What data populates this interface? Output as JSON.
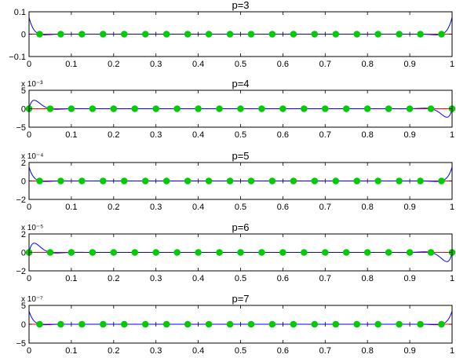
{
  "chart_data": [
    {
      "type": "line",
      "title": "p=3",
      "xlim": [
        0,
        1
      ],
      "ylim": [
        -0.1,
        0.1
      ],
      "yticks": [
        -0.1,
        0,
        0.1
      ],
      "ytick_labels": [
        "−0.1",
        "0",
        "0.1"
      ],
      "exponent_label": "",
      "xticks": [
        0,
        0.1,
        0.2,
        0.3,
        0.4,
        0.5,
        0.6,
        0.7,
        0.8,
        0.9,
        1
      ],
      "xtick_labels": [
        "0",
        "0.1",
        "0.2",
        "0.3",
        "0.4",
        "0.5",
        "0.6",
        "0.7",
        "0.8",
        "0.9",
        "1"
      ],
      "series": [
        {
          "kind": "error-curve",
          "color": "#0000ff",
          "peak_amplitude": 0.075,
          "zeros": [
            0.025,
            0.075,
            0.125,
            0.175,
            0.225,
            0.275,
            0.325,
            0.375,
            0.425,
            0.475,
            0.525,
            0.575,
            0.625,
            0.675,
            0.725,
            0.775,
            0.825,
            0.875,
            0.925,
            0.975
          ]
        },
        {
          "kind": "reference-line",
          "color": "#ff0000",
          "y": 0
        },
        {
          "kind": "nodes",
          "color": "#00cc00",
          "x": [
            0.025,
            0.075,
            0.125,
            0.175,
            0.225,
            0.275,
            0.325,
            0.375,
            0.425,
            0.475,
            0.525,
            0.575,
            0.625,
            0.675,
            0.725,
            0.775,
            0.825,
            0.875,
            0.925,
            0.975
          ],
          "y": 0
        }
      ]
    },
    {
      "type": "line",
      "title": "p=4",
      "xlim": [
        0,
        1
      ],
      "ylim": [
        -5,
        5
      ],
      "yticks": [
        -5,
        0,
        5
      ],
      "ytick_labels": [
        "−5",
        "0",
        "5"
      ],
      "exponent_label": "x 10⁻³",
      "xticks": [
        0,
        0.1,
        0.2,
        0.3,
        0.4,
        0.5,
        0.6,
        0.7,
        0.8,
        0.9,
        1
      ],
      "xtick_labels": [
        "0",
        "0.1",
        "0.2",
        "0.3",
        "0.4",
        "0.5",
        "0.6",
        "0.7",
        "0.8",
        "0.9",
        "1"
      ],
      "series": [
        {
          "kind": "error-curve",
          "color": "#0000ff",
          "peak_amplitude": 2.3,
          "zeros": [
            0,
            0.05,
            0.1,
            0.15,
            0.2,
            0.25,
            0.3,
            0.35,
            0.4,
            0.45,
            0.5,
            0.55,
            0.6,
            0.65,
            0.7,
            0.75,
            0.8,
            0.85,
            0.9,
            0.95,
            1
          ]
        },
        {
          "kind": "reference-line",
          "color": "#ff0000",
          "y": 0
        },
        {
          "kind": "nodes",
          "color": "#00cc00",
          "x": [
            0,
            0.05,
            0.1,
            0.15,
            0.2,
            0.25,
            0.3,
            0.35,
            0.4,
            0.45,
            0.5,
            0.55,
            0.6,
            0.65,
            0.7,
            0.75,
            0.8,
            0.85,
            0.9,
            0.95,
            1
          ],
          "y": 0
        }
      ]
    },
    {
      "type": "line",
      "title": "p=5",
      "xlim": [
        0,
        1
      ],
      "ylim": [
        -2,
        2
      ],
      "yticks": [
        -2,
        0,
        2
      ],
      "ytick_labels": [
        "−2",
        "0",
        "2"
      ],
      "exponent_label": "x 10⁻⁴",
      "xticks": [
        0,
        0.1,
        0.2,
        0.3,
        0.4,
        0.5,
        0.6,
        0.7,
        0.8,
        0.9,
        1
      ],
      "xtick_labels": [
        "0",
        "0.1",
        "0.2",
        "0.3",
        "0.4",
        "0.5",
        "0.6",
        "0.7",
        "0.8",
        "0.9",
        "1"
      ],
      "series": [
        {
          "kind": "error-curve",
          "color": "#0000ff",
          "peak_amplitude": 1.5,
          "zeros": [
            0.025,
            0.075,
            0.125,
            0.175,
            0.225,
            0.275,
            0.325,
            0.375,
            0.425,
            0.475,
            0.525,
            0.575,
            0.625,
            0.675,
            0.725,
            0.775,
            0.825,
            0.875,
            0.925,
            0.975
          ]
        },
        {
          "kind": "reference-line",
          "color": "#ff0000",
          "y": 0
        },
        {
          "kind": "nodes",
          "color": "#00cc00",
          "x": [
            0.025,
            0.075,
            0.125,
            0.175,
            0.225,
            0.275,
            0.325,
            0.375,
            0.425,
            0.475,
            0.525,
            0.575,
            0.625,
            0.675,
            0.725,
            0.775,
            0.825,
            0.875,
            0.925,
            0.975
          ],
          "y": 0
        }
      ]
    },
    {
      "type": "line",
      "title": "p=6",
      "xlim": [
        0,
        1
      ],
      "ylim": [
        -2,
        2
      ],
      "yticks": [
        -2,
        0,
        2
      ],
      "ytick_labels": [
        "−2",
        "0",
        "2"
      ],
      "exponent_label": "x 10⁻⁵",
      "xticks": [
        0,
        0.1,
        0.2,
        0.3,
        0.4,
        0.5,
        0.6,
        0.7,
        0.8,
        0.9,
        1
      ],
      "xtick_labels": [
        "0",
        "0.1",
        "0.2",
        "0.3",
        "0.4",
        "0.5",
        "0.6",
        "0.7",
        "0.8",
        "0.9",
        "1"
      ],
      "series": [
        {
          "kind": "error-curve",
          "color": "#0000ff",
          "peak_amplitude": 1.0,
          "zeros": [
            0,
            0.05,
            0.1,
            0.15,
            0.2,
            0.25,
            0.3,
            0.35,
            0.4,
            0.45,
            0.5,
            0.55,
            0.6,
            0.65,
            0.7,
            0.75,
            0.8,
            0.85,
            0.9,
            0.95,
            1
          ]
        },
        {
          "kind": "reference-line",
          "color": "#ff0000",
          "y": 0
        },
        {
          "kind": "nodes",
          "color": "#00cc00",
          "x": [
            0,
            0.05,
            0.1,
            0.15,
            0.2,
            0.25,
            0.3,
            0.35,
            0.4,
            0.45,
            0.5,
            0.55,
            0.6,
            0.65,
            0.7,
            0.75,
            0.8,
            0.85,
            0.9,
            0.95,
            1
          ],
          "y": 0
        }
      ]
    },
    {
      "type": "line",
      "title": "p=7",
      "xlim": [
        0,
        1
      ],
      "ylim": [
        -5,
        5
      ],
      "yticks": [
        -5,
        0,
        5
      ],
      "ytick_labels": [
        "−5",
        "0",
        "5"
      ],
      "exponent_label": "x 10⁻⁷",
      "xticks": [
        0,
        0.1,
        0.2,
        0.3,
        0.4,
        0.5,
        0.6,
        0.7,
        0.8,
        0.9,
        1
      ],
      "xtick_labels": [
        "0",
        "0.1",
        "0.2",
        "0.3",
        "0.4",
        "0.5",
        "0.6",
        "0.7",
        "0.8",
        "0.9",
        "1"
      ],
      "series": [
        {
          "kind": "error-curve",
          "color": "#0000ff",
          "peak_amplitude": 3.5,
          "zeros": [
            0.025,
            0.075,
            0.125,
            0.175,
            0.225,
            0.275,
            0.325,
            0.375,
            0.425,
            0.475,
            0.525,
            0.575,
            0.625,
            0.675,
            0.725,
            0.775,
            0.825,
            0.875,
            0.925,
            0.975
          ]
        },
        {
          "kind": "reference-line",
          "color": "#ff0000",
          "y": 0
        },
        {
          "kind": "nodes",
          "color": "#00cc00",
          "x": [
            0.025,
            0.075,
            0.125,
            0.175,
            0.225,
            0.275,
            0.325,
            0.375,
            0.425,
            0.475,
            0.525,
            0.575,
            0.625,
            0.675,
            0.725,
            0.775,
            0.825,
            0.875,
            0.925,
            0.975
          ],
          "y": 0
        }
      ]
    }
  ]
}
